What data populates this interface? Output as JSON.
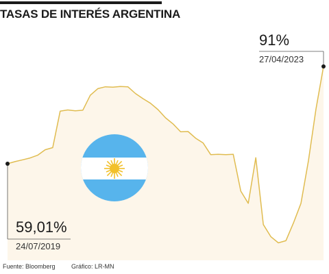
{
  "title": "TASAS DE INTERÉS ARGENTINA",
  "footer": {
    "source": "Fuente: Bloomberg",
    "credit": "Gráfico: LR-MN"
  },
  "colors": {
    "line": "#e0bc50",
    "fill": "#fdf6ea",
    "ink": "#1a1a1a",
    "flag_blue": "#57b4ec",
    "flag_sun": "#f2c02a"
  },
  "icons": {
    "flag": "argentina-flag-icon"
  },
  "chart_data": {
    "type": "area",
    "ylim": [
      25,
      100
    ],
    "series": [
      {
        "values": [
          59.01,
          59.7,
          60.3,
          60.9,
          61.8,
          63.6,
          64.3,
          76.3,
          76.7,
          76.4,
          76.6,
          81.5,
          83.7,
          84.3,
          84.2,
          84.4,
          84.3,
          82.1,
          80.4,
          78.9,
          76.8,
          74.1,
          72.1,
          69.5,
          69.6,
          67.4,
          65.8,
          62.0,
          62.1,
          62.0,
          62.1,
          50.0,
          46.0,
          61.0,
          39.0,
          35.0,
          33.0,
          33.7,
          39.5,
          46.0,
          60.0,
          77.0,
          91.0
        ]
      }
    ],
    "annotations": [
      {
        "label": "59,01%",
        "date": "24/07/2019"
      },
      {
        "label": "91%",
        "date": "27/04/2023"
      }
    ]
  }
}
